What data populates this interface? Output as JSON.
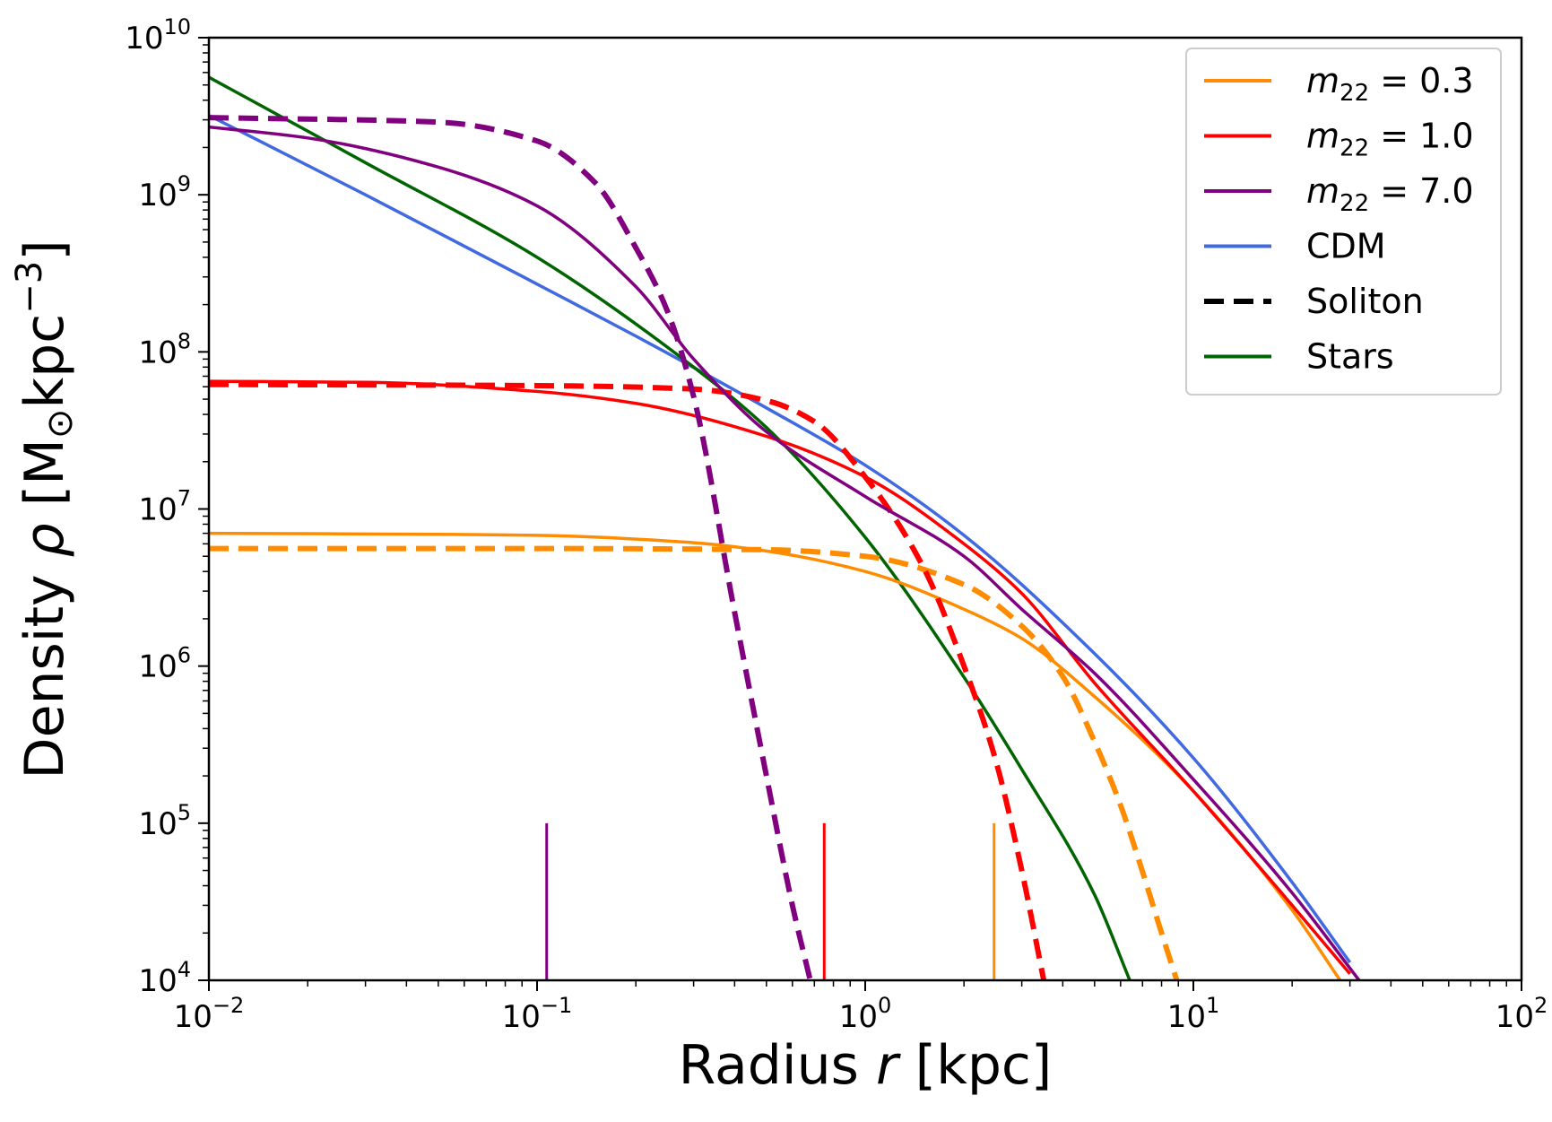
{
  "chart_data": {
    "type": "line",
    "x_scale": "log",
    "y_scale": "log",
    "xlim": [
      0.01,
      100
    ],
    "ylim": [
      10000,
      10000000000
    ],
    "xlabel": {
      "prefix": "Radius ",
      "var": "r",
      "suffix": " [kpc]"
    },
    "ylabel": {
      "prefix": "Density ",
      "var": "ρ",
      "suffix_open": " [M",
      "sub": "⊙",
      "mid": "kpc",
      "sup": "−3",
      "suffix_close": "]"
    },
    "x_ticks": [
      {
        "base": "10",
        "exp": "−2",
        "value": 0.01
      },
      {
        "base": "10",
        "exp": "−1",
        "value": 0.1
      },
      {
        "base": "10",
        "exp": "0",
        "value": 1
      },
      {
        "base": "10",
        "exp": "1",
        "value": 10
      },
      {
        "base": "10",
        "exp": "2",
        "value": 100
      }
    ],
    "y_ticks": [
      {
        "base": "10",
        "exp": "4",
        "value": 10000
      },
      {
        "base": "10",
        "exp": "5",
        "value": 100000
      },
      {
        "base": "10",
        "exp": "6",
        "value": 1000000
      },
      {
        "base": "10",
        "exp": "7",
        "value": 10000000
      },
      {
        "base": "10",
        "exp": "8",
        "value": 100000000
      },
      {
        "base": "10",
        "exp": "9",
        "value": 1000000000
      },
      {
        "base": "10",
        "exp": "10",
        "value": 10000000000
      }
    ],
    "legend_position": "top-right",
    "legend": [
      {
        "label_var": "m",
        "label_sub": "22",
        "label_rest": " = 0.3",
        "color": "#FF8C00",
        "style": "solid"
      },
      {
        "label_var": "m",
        "label_sub": "22",
        "label_rest": " = 1.0",
        "color": "#FF0000",
        "style": "solid"
      },
      {
        "label_var": "m",
        "label_sub": "22",
        "label_rest": " = 7.0",
        "color": "#800080",
        "style": "solid"
      },
      {
        "label_var": "",
        "label_sub": "",
        "label_rest": "CDM",
        "color": "#4169E1",
        "style": "solid"
      },
      {
        "label_var": "",
        "label_sub": "",
        "label_rest": "Soliton",
        "color": "#000000",
        "style": "dashed"
      },
      {
        "label_var": "",
        "label_sub": "",
        "label_rest": "Stars",
        "color": "#006400",
        "style": "solid"
      }
    ],
    "series": [
      {
        "color": "#4169E1",
        "style": "solid",
        "x": [
          0.01,
          0.03,
          0.1,
          0.2,
          0.5,
          1,
          2,
          5,
          10,
          20,
          30
        ],
        "y": [
          3200000000.0,
          1000000000.0,
          270000000.0,
          126000000.0,
          44000000.0,
          19000000.0,
          6800000.0,
          1200000.0,
          260000.0,
          42000.0,
          13000.0
        ]
      },
      {
        "color": "#006400",
        "style": "solid",
        "x": [
          0.01,
          0.03,
          0.1,
          0.3,
          0.5,
          1,
          2,
          3,
          5,
          6.4
        ],
        "y": [
          5600000000.0,
          1600000000.0,
          400000000.0,
          80000000.0,
          33000000.0,
          6600000.0,
          850000.0,
          220000.0,
          35000.0,
          10000.0
        ]
      },
      {
        "color": "#FF8C00",
        "style": "solid",
        "x": [
          0.01,
          0.05,
          0.1,
          0.3,
          0.5,
          1,
          2,
          3,
          5,
          10,
          20,
          28
        ],
        "y": [
          7000000.0,
          6900000.0,
          6800000.0,
          6100000.0,
          5400000.0,
          4000000.0,
          2300000.0,
          1500000.0,
          640000.0,
          160000.0,
          28000.0,
          10000.0
        ]
      },
      {
        "color": "#FF8C00",
        "style": "dashed",
        "x": [
          0.01,
          0.1,
          0.5,
          1,
          2,
          3,
          4,
          5,
          6,
          7,
          8,
          8.9
        ],
        "y": [
          5600000.0,
          5600000.0,
          5500000.0,
          5000000.0,
          3300000.0,
          1800000.0,
          860000.0,
          330000.0,
          130000.0,
          49000.0,
          20000.0,
          10000.0
        ]
      },
      {
        "color": "#FF0000",
        "style": "solid",
        "x": [
          0.01,
          0.03,
          0.1,
          0.2,
          0.5,
          1,
          2,
          3,
          5,
          10,
          20,
          30
        ],
        "y": [
          65000000.0,
          64000000.0,
          56000000.0,
          47000000.0,
          29000000.0,
          16000000.0,
          6000000.0,
          2900000.0,
          780000.0,
          160000.0,
          30000.0,
          11000.0
        ]
      },
      {
        "color": "#FF0000",
        "style": "dashed",
        "x": [
          0.01,
          0.1,
          0.3,
          0.5,
          0.7,
          1,
          1.5,
          2,
          2.5,
          3,
          3.5
        ],
        "y": [
          62000000.0,
          61000000.0,
          58000000.0,
          49000000.0,
          36000000.0,
          16000000.0,
          4300000.0,
          1000000.0,
          250000.0,
          50000.0,
          10000.0
        ]
      },
      {
        "color": "#800080",
        "style": "solid",
        "x": [
          0.01,
          0.02,
          0.05,
          0.1,
          0.2,
          0.3,
          0.5,
          1,
          2,
          3,
          5,
          10,
          20,
          32
        ],
        "y": [
          2700000000.0,
          2300000000.0,
          1500000000.0,
          850000000.0,
          260000000.0,
          90000000.0,
          31000000.0,
          12000000.0,
          5000000.0,
          2300000.0,
          900000.0,
          190000.0,
          36000.0,
          10000.0
        ]
      },
      {
        "color": "#800080",
        "style": "dashed",
        "x": [
          0.01,
          0.05,
          0.1,
          0.15,
          0.2,
          0.25,
          0.3,
          0.4,
          0.5,
          0.6,
          0.68
        ],
        "y": [
          3100000000.0,
          2900000000.0,
          2200000000.0,
          1200000000.0,
          460000000.0,
          180000000.0,
          52000000.0,
          2200000.0,
          200000.0,
          30000.0,
          10000.0
        ]
      }
    ],
    "markers": [
      {
        "x": 0.107,
        "y": 100000,
        "color": "#800080"
      },
      {
        "x": 0.75,
        "y": 100000,
        "color": "#FF0000"
      },
      {
        "x": 2.47,
        "y": 100000,
        "color": "#FF8C00"
      }
    ]
  }
}
